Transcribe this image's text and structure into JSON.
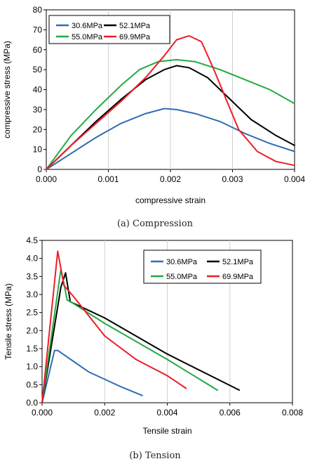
{
  "colors": {
    "blue": "#2e6db4",
    "black": "#000000",
    "green": "#22aa44",
    "red": "#ee1c25"
  },
  "chart_data": [
    {
      "type": "line",
      "caption": "(a)  Compression",
      "xlabel": "compressive strain",
      "ylabel": "compressive stress (MPa)",
      "xlim": [
        0,
        0.004
      ],
      "ylim": [
        0,
        80
      ],
      "xticks": [
        "0.000",
        "0.001",
        "0.002",
        "0.003",
        "0.004"
      ],
      "yticks": [
        "0",
        "10",
        "20",
        "30",
        "40",
        "50",
        "60",
        "70",
        "80"
      ],
      "grid": "vertical",
      "legend_position": "top-left",
      "series": [
        {
          "name": "30.6MPa",
          "color": "#2e6db4",
          "x": [
            0,
            0.0004,
            0.0008,
            0.0012,
            0.0016,
            0.0019,
            0.0021,
            0.0024,
            0.0028,
            0.0032,
            0.0036,
            0.004
          ],
          "y": [
            0,
            8,
            16,
            23,
            28,
            30.5,
            30,
            28,
            24,
            18,
            13,
            9
          ]
        },
        {
          "name": "52.1MPa",
          "color": "#000000",
          "x": [
            0,
            0.0004,
            0.0008,
            0.0012,
            0.0016,
            0.0019,
            0.0021,
            0.0023,
            0.0026,
            0.0029,
            0.0033,
            0.0037,
            0.004
          ],
          "y": [
            0,
            12,
            24,
            35,
            45,
            50,
            52,
            51,
            46,
            37,
            25,
            17,
            12
          ]
        },
        {
          "name": "55.0MPa",
          "color": "#22aa44",
          "x": [
            0,
            0.0004,
            0.0008,
            0.0012,
            0.0015,
            0.0018,
            0.0021,
            0.0024,
            0.0028,
            0.0032,
            0.0036,
            0.004
          ],
          "y": [
            0,
            17,
            30,
            42,
            50,
            54,
            55,
            54,
            50,
            45,
            40,
            33
          ]
        },
        {
          "name": "69.9MPa",
          "color": "#ee1c25",
          "x": [
            0,
            0.0004,
            0.0008,
            0.0012,
            0.0016,
            0.0019,
            0.0021,
            0.0023,
            0.0025,
            0.0027,
            0.0029,
            0.0031,
            0.0034,
            0.0037,
            0.004
          ],
          "y": [
            0,
            12,
            23,
            34,
            46,
            57,
            65,
            67,
            64,
            50,
            35,
            20,
            9,
            4,
            2
          ]
        }
      ]
    },
    {
      "type": "line",
      "caption": "(b)  Tension",
      "xlabel": "Tensile strain",
      "ylabel": "Tensile stress (MPa)",
      "xlim": [
        0,
        0.008
      ],
      "ylim": [
        0,
        4.5
      ],
      "xticks": [
        "0.000",
        "0.002",
        "0.004",
        "0.006",
        "0.008"
      ],
      "yticks": [
        "0.0",
        "0.5",
        "1.0",
        "1.5",
        "2.0",
        "2.5",
        "3.0",
        "3.5",
        "4.0",
        "4.5"
      ],
      "grid": "vertical",
      "legend_position": "top-right",
      "series": [
        {
          "name": "30.6MPa",
          "color": "#2e6db4",
          "x": [
            0,
            0.0004,
            0.0005,
            0.001,
            0.0015,
            0.002,
            0.0025,
            0.0032
          ],
          "y": [
            0,
            1.45,
            1.45,
            1.15,
            0.85,
            0.65,
            0.45,
            0.2
          ]
        },
        {
          "name": "52.1MPa",
          "color": "#000000",
          "x": [
            0,
            0.0006,
            0.00075,
            0.0009,
            0.002,
            0.004,
            0.0063
          ],
          "y": [
            0,
            3.2,
            3.6,
            2.8,
            2.35,
            1.35,
            0.35
          ]
        },
        {
          "name": "55.0MPa",
          "color": "#22aa44",
          "x": [
            0,
            0.0006,
            0.0007,
            0.0008,
            0.001,
            0.002,
            0.004,
            0.0056
          ],
          "y": [
            0,
            3.7,
            3.3,
            2.85,
            2.75,
            2.2,
            1.2,
            0.35
          ]
        },
        {
          "name": "69.9MPa",
          "color": "#ee1c25",
          "x": [
            0,
            0.0005,
            0.0007,
            0.001,
            0.002,
            0.003,
            0.004,
            0.0046
          ],
          "y": [
            0,
            4.2,
            3.25,
            2.95,
            1.85,
            1.2,
            0.75,
            0.4
          ]
        }
      ]
    }
  ]
}
